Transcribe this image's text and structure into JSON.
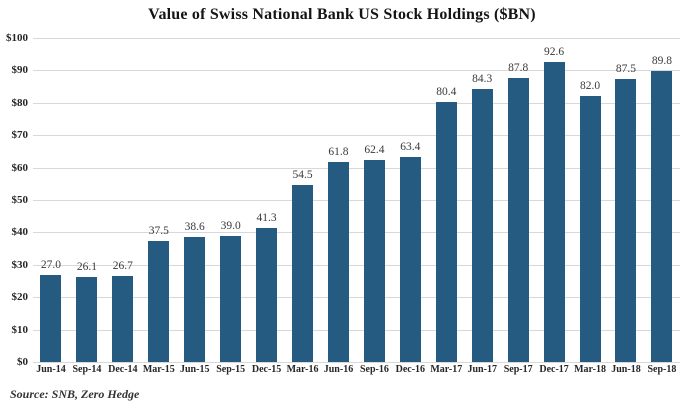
{
  "chart_data": {
    "type": "bar",
    "title": "Value of Swiss National Bank US Stock Holdings ($BN)",
    "source": "Source: SNB, Zero Hedge",
    "categories": [
      "Jun-14",
      "Sep-14",
      "Dec-14",
      "Mar-15",
      "Jun-15",
      "Sep-15",
      "Dec-15",
      "Mar-16",
      "Jun-16",
      "Sep-16",
      "Dec-16",
      "Mar-17",
      "Jun-17",
      "Sep-17",
      "Dec-17",
      "Mar-18",
      "Jun-18",
      "Sep-18"
    ],
    "values": [
      27.0,
      26.1,
      26.7,
      37.5,
      38.6,
      39.0,
      41.3,
      54.5,
      61.8,
      62.4,
      63.4,
      80.4,
      84.3,
      87.8,
      92.6,
      82.0,
      87.5,
      89.8
    ],
    "value_labels": [
      "27.0",
      "26.1",
      "26.7",
      "37.5",
      "38.6",
      "39.0",
      "41.3",
      "54.5",
      "61.8",
      "62.4",
      "63.4",
      "80.4",
      "84.3",
      "87.8",
      "92.6",
      "82.0",
      "87.5",
      "89.8"
    ],
    "xlabel": "",
    "ylabel": "",
    "ylim": [
      0,
      100
    ],
    "y_ticks": [
      {
        "value": 0,
        "label": "$0"
      },
      {
        "value": 10,
        "label": "$10"
      },
      {
        "value": 20,
        "label": "$20"
      },
      {
        "value": 30,
        "label": "$30"
      },
      {
        "value": 40,
        "label": "$40"
      },
      {
        "value": 50,
        "label": "$50"
      },
      {
        "value": 60,
        "label": "$60"
      },
      {
        "value": 70,
        "label": "$70"
      },
      {
        "value": 80,
        "label": "$80"
      },
      {
        "value": 90,
        "label": "$90"
      },
      {
        "value": 100,
        "label": "$100"
      }
    ],
    "grid": true,
    "legend_position": "none",
    "colors": {
      "bar": "#255b80",
      "gridline": "#d8d8d8",
      "title_text": "#141414",
      "axis_text": "#262626",
      "value_label_text": "#3a3a3a",
      "background": "#ffffff"
    }
  }
}
